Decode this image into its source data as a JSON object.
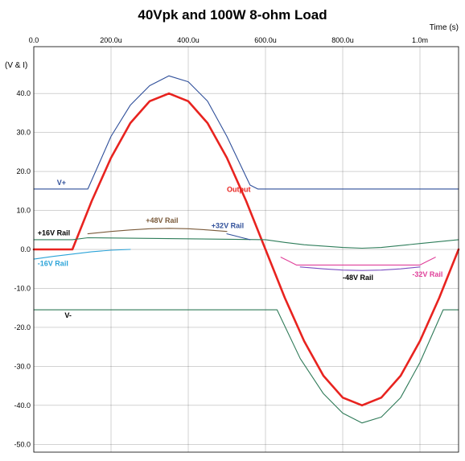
{
  "chart_data": {
    "type": "line",
    "title": "40Vpk and 100W 8-ohm Load",
    "xlabel": "Time   (s)",
    "ylabel": "(V & I)",
    "xlim": [
      0,
      0.0011
    ],
    "ylim": [
      -52,
      52
    ],
    "xticks": [
      0,
      0.0002,
      0.0004,
      0.0006,
      0.0008,
      0.001
    ],
    "xtick_labels": [
      "0.0",
      "200.0u",
      "400.0u",
      "600.0u",
      "800.0u",
      "1.0m"
    ],
    "yticks": [
      40,
      30,
      20,
      10,
      0,
      -10,
      -20,
      -30,
      -40,
      -50
    ],
    "ytick_labels": [
      "40.0",
      "30.0",
      "20.0",
      "10.0",
      "0.0",
      "-10.0",
      "-20.0",
      "-30.0",
      "-40.0",
      "-50.0"
    ],
    "grid": true,
    "colors": {
      "output": "#e8231f",
      "vplus": "#2f4f9a",
      "vminus": "#2f7a58",
      "rail16": "#2e7d5a",
      "rail16neg": "#2aa3d8",
      "rail32": "#2f4f9a",
      "rail32neg": "#e0409a",
      "rail48": "#7a5a3a",
      "rail48neg": "#7b4fc2",
      "grid": "#000000"
    },
    "series": [
      {
        "name": "Output",
        "color": "#e8231f",
        "x": [
          0,
          0.0001,
          0.00015,
          0.0002,
          0.00025,
          0.0003,
          0.00035,
          0.0004,
          0.00045,
          0.0005,
          0.00055,
          0.0006,
          0.00065,
          0.0007,
          0.00075,
          0.0008,
          0.00085,
          0.0009,
          0.00095,
          0.001,
          0.00105,
          0.0011
        ],
        "y": [
          0,
          0,
          12.4,
          23.5,
          32.4,
          38.0,
          40.0,
          38.0,
          32.4,
          23.5,
          12.4,
          0,
          -12.4,
          -23.5,
          -32.4,
          -38.0,
          -40.0,
          -38.0,
          -32.4,
          -23.5,
          -12.4,
          0
        ]
      },
      {
        "name": "V+",
        "color": "#2f4f9a",
        "x": [
          0,
          0.00014,
          0.0002,
          0.00025,
          0.0003,
          0.00035,
          0.0004,
          0.00045,
          0.0005,
          0.00056,
          0.00058,
          0.0011
        ],
        "y": [
          15.5,
          15.5,
          29,
          37,
          42,
          44.5,
          43,
          38,
          29,
          16.5,
          15.5,
          15.5
        ]
      },
      {
        "name": "V-",
        "color": "#2f7a58",
        "x": [
          0,
          0.00063,
          0.00069,
          0.00075,
          0.0008,
          0.00085,
          0.0009,
          0.00095,
          0.001,
          0.00106,
          0.0011
        ],
        "y": [
          -15.5,
          -15.5,
          -28,
          -37,
          -42,
          -44.5,
          -43,
          -38,
          -29,
          -15.5,
          -15.5
        ]
      },
      {
        "name": "+16V Rail",
        "color": "#2e7d5a",
        "x": [
          0,
          0.0001,
          0.00014,
          0.0006,
          0.00065,
          0.0007,
          0.0008,
          0.00085,
          0.0009,
          0.001,
          0.0011
        ],
        "y": [
          2.5,
          2.5,
          3.0,
          2.5,
          1.8,
          1.2,
          0.5,
          0.3,
          0.5,
          1.5,
          2.5
        ]
      },
      {
        "name": "-16V Rail",
        "color": "#2aa3d8",
        "x": [
          0,
          5e-05,
          0.0001,
          0.00015,
          0.0002,
          0.00025
        ],
        "y": [
          -2.5,
          -1.8,
          -1.2,
          -0.6,
          -0.2,
          0
        ]
      },
      {
        "name": "+48V Rail",
        "color": "#7a5a3a",
        "x": [
          0.00014,
          0.0002,
          0.00025,
          0.0003,
          0.00035,
          0.0004,
          0.00045,
          0.0005
        ],
        "y": [
          4.0,
          4.6,
          5.0,
          5.3,
          5.4,
          5.3,
          5.0,
          4.6
        ]
      },
      {
        "name": "+32V Rail",
        "color": "#2f4f9a",
        "x": [
          0.0005,
          0.00052,
          0.00054,
          0.00056
        ],
        "y": [
          4.0,
          3.5,
          3.0,
          2.5
        ]
      },
      {
        "name": "-48V Rail",
        "color": "#7b4fc2",
        "x": [
          0.00069,
          0.00075,
          0.0008,
          0.00085,
          0.0009,
          0.00095,
          0.001
        ],
        "y": [
          -4.5,
          -5.0,
          -5.3,
          -5.4,
          -5.3,
          -5.0,
          -4.5
        ]
      },
      {
        "name": "-32V Rail",
        "color": "#e0409a",
        "x": [
          0.00064,
          0.00066,
          0.00068,
          0.001,
          0.00102,
          0.00104
        ],
        "y": [
          -2.0,
          -3.0,
          -4.0,
          -4.0,
          -3.0,
          -2.0
        ]
      }
    ],
    "annotations": [
      {
        "text": "V+",
        "x": 6e-05,
        "y": 16.5,
        "color": "#2f4f9a"
      },
      {
        "text": "V-",
        "x": 8e-05,
        "y": -17.5,
        "color": "#000000"
      },
      {
        "text": "Output",
        "x": 0.0005,
        "y": 14.8,
        "color": "#e8231f"
      },
      {
        "text": "+16V Rail",
        "x": 1e-05,
        "y": 3.6,
        "color": "#000000"
      },
      {
        "text": "-16V Rail",
        "x": 1e-05,
        "y": -4.2,
        "color": "#2aa3d8"
      },
      {
        "text": "+48V Rail",
        "x": 0.00029,
        "y": 6.8,
        "color": "#7a5a3a"
      },
      {
        "text": "+32V Rail",
        "x": 0.00046,
        "y": 5.5,
        "color": "#2f4f9a"
      },
      {
        "text": "-48V Rail",
        "x": 0.0008,
        "y": -7.8,
        "color": "#000000"
      },
      {
        "text": "-32V Rail",
        "x": 0.00098,
        "y": -7.0,
        "color": "#e0409a"
      }
    ]
  }
}
